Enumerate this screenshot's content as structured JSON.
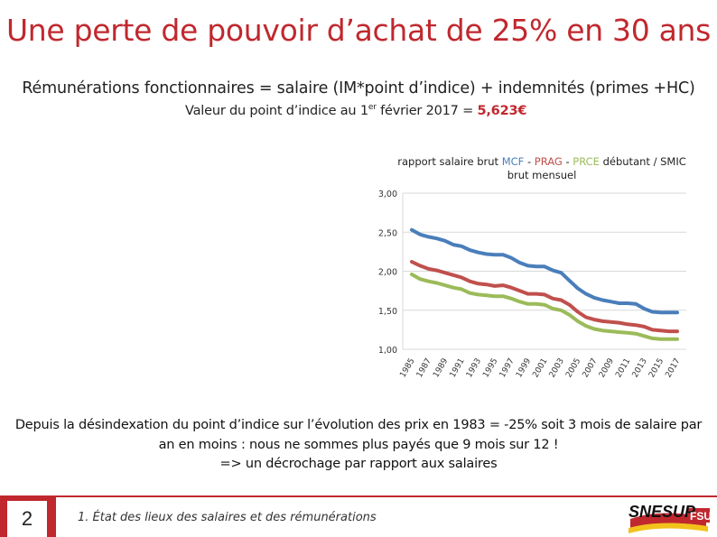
{
  "title": "Une perte de pouvoir d’achat de 25% en 30 ans",
  "subtitle": "Rémunérations fonctionnaires = salaire (IM*point d’indice) + indemnités (primes +HC)",
  "point": {
    "prefix": "Valeur du point d’indice au 1",
    "sup": "er",
    "suffix": " février 2017 = ",
    "value": "5,623€"
  },
  "chart_data": {
    "type": "line",
    "title_parts": {
      "prefix": "rapport salaire brut ",
      "mcf": "MCF",
      "sep1": " - ",
      "prag": "PRAG",
      "sep2": " - ",
      "prce": "PRCE",
      "suffix": " débutant / SMIC",
      "line2": "brut mensuel"
    },
    "ylim": [
      1.0,
      3.0
    ],
    "yticks": [
      "3,00",
      "2,50",
      "2,00",
      "1,50",
      "1,00"
    ],
    "ytick_values": [
      3.0,
      2.5,
      2.0,
      1.5,
      1.0
    ],
    "xticks": [
      "1985",
      "1987",
      "1989",
      "1991",
      "1993",
      "1995",
      "1997",
      "1999",
      "2001",
      "2003",
      "2005",
      "2007",
      "2009",
      "2011",
      "2013",
      "2015",
      "2017"
    ],
    "x": [
      1985,
      1986,
      1987,
      1988,
      1989,
      1990,
      1991,
      1992,
      1993,
      1994,
      1995,
      1996,
      1997,
      1998,
      1999,
      2000,
      2001,
      2002,
      2003,
      2004,
      2005,
      2006,
      2007,
      2008,
      2009,
      2010,
      2011,
      2012,
      2013,
      2014,
      2015,
      2016,
      2017
    ],
    "grid": true,
    "series": [
      {
        "name": "MCF",
        "color": "#4a7ebb",
        "values": [
          2.53,
          2.47,
          2.44,
          2.42,
          2.39,
          2.34,
          2.32,
          2.27,
          2.24,
          2.22,
          2.21,
          2.21,
          2.17,
          2.11,
          2.07,
          2.06,
          2.06,
          2.01,
          1.98,
          1.88,
          1.78,
          1.71,
          1.66,
          1.63,
          1.61,
          1.59,
          1.59,
          1.58,
          1.52,
          1.48,
          1.47,
          1.47,
          1.47
        ]
      },
      {
        "name": "PRAG",
        "color": "#c0504d",
        "values": [
          2.12,
          2.07,
          2.03,
          2.01,
          1.98,
          1.95,
          1.92,
          1.87,
          1.84,
          1.83,
          1.81,
          1.82,
          1.79,
          1.75,
          1.71,
          1.71,
          1.7,
          1.65,
          1.63,
          1.57,
          1.48,
          1.41,
          1.38,
          1.36,
          1.35,
          1.34,
          1.32,
          1.31,
          1.29,
          1.25,
          1.24,
          1.23,
          1.23
        ]
      },
      {
        "name": "PRCE",
        "color": "#9bbb59",
        "values": [
          1.96,
          1.9,
          1.87,
          1.85,
          1.82,
          1.79,
          1.77,
          1.72,
          1.7,
          1.69,
          1.68,
          1.68,
          1.65,
          1.61,
          1.58,
          1.58,
          1.57,
          1.52,
          1.5,
          1.44,
          1.36,
          1.3,
          1.26,
          1.24,
          1.23,
          1.22,
          1.21,
          1.2,
          1.17,
          1.14,
          1.13,
          1.13,
          1.13
        ]
      }
    ]
  },
  "body_lines": [
    "Depuis la désindexation du point d’indice sur l’évolution des prix en 1983 =  -25% soit 3 mois de salaire par",
    "an en moins : nous ne sommes plus payés que 9 mois sur 12 !",
    "=> un décrochage par rapport aux salaires"
  ],
  "footer": {
    "page_number": "2",
    "section": "1. État des lieux des salaires et des rémunérations"
  },
  "logo": {
    "text_main": "SNESUP",
    "text_sub": "FSU"
  },
  "colors": {
    "accent": "#c0282e",
    "mcf": "#4a7ebb",
    "prag": "#c0504d",
    "prce": "#9bbb59"
  }
}
